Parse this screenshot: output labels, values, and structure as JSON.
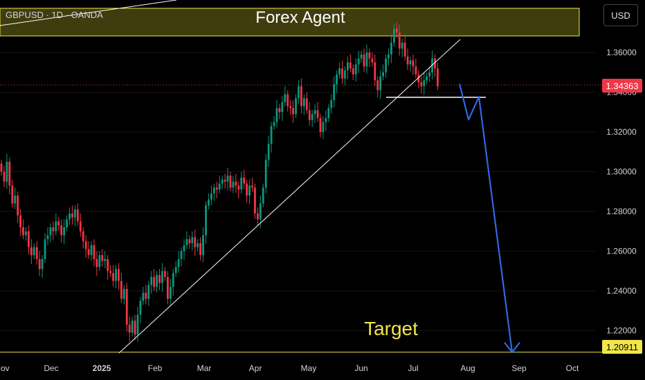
{
  "header": {
    "symbol_line": "GBPUSD · 1D · OANDA",
    "currency_button": "USD"
  },
  "annotations": {
    "banner": "Forex Agent",
    "target_label": "Target"
  },
  "price_tags": {
    "current": "1.34363",
    "target": "1.20911"
  },
  "colors": {
    "up": "#089981",
    "down": "#f23645",
    "banner_fill": "#4a4610",
    "banner_border": "#f2e64a",
    "projection": "#3366e6",
    "trendline": "#ffffff",
    "target_line": "#f2e64a"
  },
  "chart_data": {
    "type": "candlestick",
    "title": "GBPUSD · 1D · OANDA",
    "xlabel": "",
    "ylabel": "",
    "x_ticks": [
      "Nov",
      "Dec",
      "2025",
      "Feb",
      "Mar",
      "Apr",
      "May",
      "Jun",
      "Jul",
      "Aug",
      "Sep",
      "Oct"
    ],
    "y_ticks": [
      "1.36000",
      "1.34000",
      "1.32000",
      "1.30000",
      "1.28000",
      "1.26000",
      "1.24000",
      "1.22000"
    ],
    "ylim": [
      1.205,
      1.375
    ],
    "current_price": 1.34363,
    "target_price": 1.20911,
    "series": [
      {
        "name": "GBPUSD",
        "close": [
          1.3,
          1.295,
          1.305,
          1.293,
          1.284,
          1.288,
          1.278,
          1.272,
          1.268,
          1.27,
          1.262,
          1.258,
          1.262,
          1.256,
          1.251,
          1.256,
          1.266,
          1.268,
          1.272,
          1.27,
          1.275,
          1.273,
          1.268,
          1.272,
          1.276,
          1.279,
          1.277,
          1.281,
          1.275,
          1.27,
          1.265,
          1.261,
          1.258,
          1.263,
          1.256,
          1.252,
          1.258,
          1.255,
          1.256,
          1.25,
          1.249,
          1.245,
          1.251,
          1.245,
          1.236,
          1.241,
          1.223,
          1.219,
          1.225,
          1.218,
          1.228,
          1.235,
          1.239,
          1.236,
          1.243,
          1.247,
          1.242,
          1.248,
          1.244,
          1.25,
          1.247,
          1.236,
          1.242,
          1.249,
          1.252,
          1.256,
          1.26,
          1.263,
          1.266,
          1.264,
          1.267,
          1.262,
          1.264,
          1.258,
          1.268,
          1.283,
          1.286,
          1.289,
          1.292,
          1.291,
          1.294,
          1.296,
          1.295,
          1.298,
          1.292,
          1.295,
          1.293,
          1.291,
          1.297,
          1.294,
          1.288,
          1.293,
          1.292,
          1.279,
          1.276,
          1.284,
          1.292,
          1.306,
          1.314,
          1.323,
          1.325,
          1.332,
          1.33,
          1.335,
          1.339,
          1.333,
          1.332,
          1.329,
          1.337,
          1.343,
          1.333,
          1.337,
          1.331,
          1.326,
          1.329,
          1.331,
          1.327,
          1.32,
          1.325,
          1.327,
          1.332,
          1.336,
          1.344,
          1.349,
          1.352,
          1.347,
          1.351,
          1.355,
          1.352,
          1.349,
          1.354,
          1.357,
          1.359,
          1.353,
          1.36,
          1.357,
          1.355,
          1.346,
          1.341,
          1.348,
          1.35,
          1.357,
          1.359,
          1.365,
          1.372,
          1.37,
          1.362,
          1.365,
          1.358,
          1.354,
          1.356,
          1.353,
          1.349,
          1.345,
          1.343,
          1.346,
          1.348,
          1.35,
          1.357,
          1.352,
          1.343
        ]
      }
    ],
    "annotations": [
      {
        "type": "rising_trendline"
      },
      {
        "type": "support_line",
        "price": 1.3375
      },
      {
        "type": "projected_path",
        "values": [
          1.3443,
          1.3262,
          1.3377,
          1.2091
        ]
      }
    ]
  }
}
